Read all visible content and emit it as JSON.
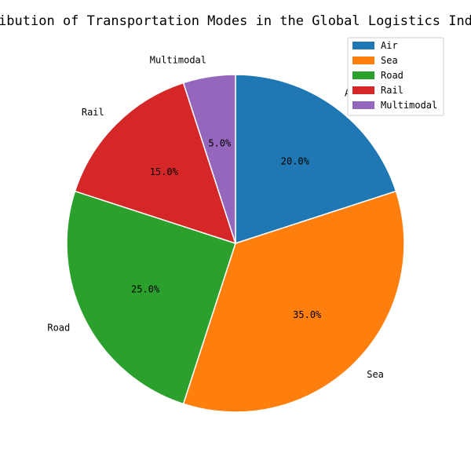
{
  "chart_data": {
    "type": "pie",
    "title": "Distribution of Transportation Modes in the Global Logistics Industry",
    "categories": [
      "Air",
      "Sea",
      "Road",
      "Rail",
      "Multimodal"
    ],
    "values": [
      20.0,
      35.0,
      25.0,
      15.0,
      5.0
    ],
    "value_labels": [
      "20.0%",
      "35.0%",
      "25.0%",
      "15.0%",
      "5.0%"
    ],
    "colors": [
      "#1f77b4",
      "#ff7f0e",
      "#2ca02c",
      "#d62728",
      "#9467bd"
    ],
    "start_angle": "top (12 o'clock)",
    "direction": "clockwise",
    "legend_position": "top-right",
    "legend_entries": [
      "Air",
      "Sea",
      "Road",
      "Rail",
      "Multimodal"
    ]
  }
}
